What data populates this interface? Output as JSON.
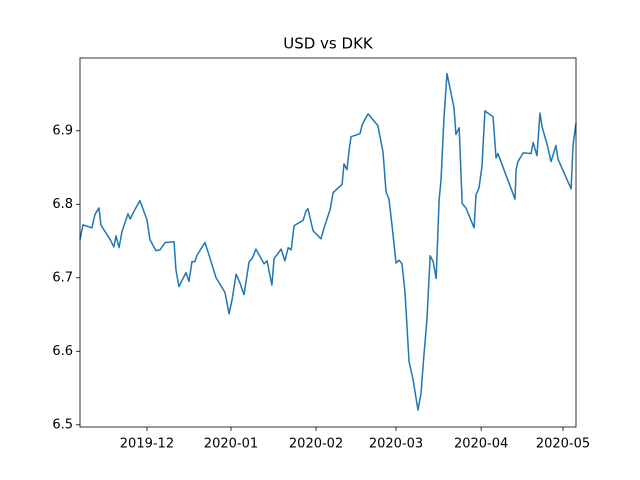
{
  "chart_data": {
    "type": "line",
    "title": "USD vs DKK",
    "x": [
      0,
      1.1,
      4.4,
      5.5,
      7.0,
      7.7,
      11.1,
      12.5,
      13.3,
      14.4,
      15.5,
      17.7,
      18.5,
      20.3,
      22.1,
      24.7,
      25.8,
      28.0,
      29.5,
      31.4,
      34.7,
      35.4,
      36.5,
      39.1,
      40.2,
      41.3,
      42.4,
      43.2,
      46.1,
      47.6,
      50.2,
      53.5,
      55.0,
      56.1,
      57.6,
      59.0,
      60.5,
      62.4,
      63.5,
      64.9,
      66.4,
      67.9,
      69.0,
      70.8,
      71.6,
      74.2,
      75.6,
      76.8,
      77.9,
      79.0,
      82.3,
      83.4,
      84.1,
      86.0,
      88.9,
      90.4,
      92.3,
      93.4,
      96.7,
      97.4,
      98.5,
      99.3,
      100.0,
      103.3,
      104.1,
      105.2,
      106.3,
      109.9,
      111.8,
      112.9,
      114.0,
      115.1,
      116.6,
      117.7,
      118.8,
      119.9,
      121.4,
      122.9,
      124.7,
      125.8,
      126.9,
      128.0,
      129.2,
      130.3,
      131.4,
      132.5,
      133.2,
      134.3,
      135.4,
      138.0,
      138.7,
      139.9,
      141.0,
      142.4,
      145.4,
      146.1,
      147.2,
      148.3,
      149.4,
      152.4,
      153.5,
      154.2,
      155.0,
      160.5,
      160.9,
      161.6,
      163.5,
      166.4,
      167.2,
      168.6,
      169.7,
      170.5,
      172.3,
      173.8,
      175.6,
      176.4,
      181.2,
      181.9,
      183.0
    ],
    "series": [
      {
        "color": "#1f77b4",
        "values": [
          6.752,
          6.772,
          6.768,
          6.786,
          6.795,
          6.772,
          6.752,
          6.742,
          6.757,
          6.741,
          6.763,
          6.787,
          6.78,
          6.793,
          6.805,
          6.779,
          6.752,
          6.737,
          6.738,
          6.748,
          6.749,
          6.711,
          6.688,
          6.707,
          6.695,
          6.722,
          6.722,
          6.731,
          6.748,
          6.731,
          6.7,
          6.68,
          6.651,
          6.67,
          6.705,
          6.693,
          6.677,
          6.722,
          6.726,
          6.739,
          6.729,
          6.719,
          6.723,
          6.69,
          6.726,
          6.739,
          6.723,
          6.741,
          6.738,
          6.771,
          6.778,
          6.791,
          6.794,
          6.764,
          6.753,
          6.772,
          6.793,
          6.816,
          6.827,
          6.855,
          6.847,
          6.874,
          6.892,
          6.896,
          6.908,
          6.916,
          6.923,
          6.907,
          6.871,
          6.817,
          6.807,
          6.772,
          6.72,
          6.724,
          6.719,
          6.681,
          6.586,
          6.561,
          6.52,
          6.542,
          6.595,
          6.643,
          6.73,
          6.722,
          6.699,
          6.806,
          6.833,
          6.918,
          6.978,
          6.931,
          6.895,
          6.904,
          6.801,
          6.795,
          6.768,
          6.813,
          6.822,
          6.851,
          6.927,
          6.919,
          6.863,
          6.869,
          6.861,
          6.807,
          6.847,
          6.858,
          6.87,
          6.869,
          6.884,
          6.866,
          6.924,
          6.905,
          6.882,
          6.858,
          6.88,
          6.861,
          6.821,
          6.88,
          6.91
        ]
      }
    ],
    "xlim": [
      0,
      183
    ],
    "xticks": [
      {
        "value": 24.7,
        "label": "2019-12"
      },
      {
        "value": 55.7,
        "label": "2020-01"
      },
      {
        "value": 87.1,
        "label": "2020-02"
      },
      {
        "value": 116.6,
        "label": "2020-03"
      },
      {
        "value": 148.0,
        "label": "2020-04"
      },
      {
        "value": 178.2,
        "label": "2020-05"
      }
    ],
    "ylim": [
      6.497,
      6.999
    ],
    "yticks": [
      6.5,
      6.6,
      6.7,
      6.8,
      6.9
    ]
  }
}
